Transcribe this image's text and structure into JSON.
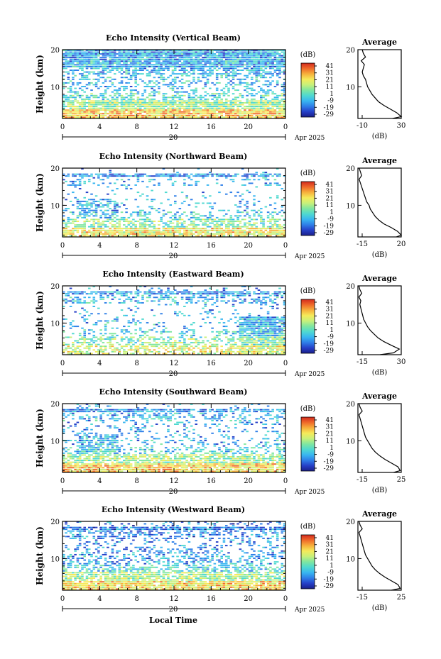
{
  "figure": {
    "common_xlabel": "Local Time",
    "date_label": "Apr 2025",
    "day_label": "20",
    "colorbar_unit": "(dB)",
    "colorbar_ticks": [
      "41",
      "31",
      "21",
      "11",
      "1",
      "-9",
      "-19",
      "-29"
    ],
    "colormap": [
      "#1b1f8a",
      "#2640c8",
      "#2f7fe8",
      "#39b6f0",
      "#4fd9d0",
      "#7fe6a0",
      "#c8f07a",
      "#f5ea5a",
      "#f7b03c",
      "#ef6a2a",
      "#d22a1e"
    ],
    "average_title": "Average",
    "average_xlabel": "(dB)"
  },
  "chart_data": [
    {
      "type": "heatmap",
      "title": "Echo Intensity (Vertical Beam)",
      "ylabel": "Height (km)",
      "xlabel": "",
      "x_ticks": [
        "0",
        "4",
        "8",
        "12",
        "16",
        "20",
        "0"
      ],
      "y_ticks": [
        "20",
        "10"
      ],
      "xlim": [
        0,
        24
      ],
      "ylim": [
        1.5,
        20
      ],
      "color_range_db": [
        -29,
        41
      ],
      "average_profile": {
        "xlim": [
          -10,
          30
        ],
        "x_tick_labels": [
          "-10",
          "30"
        ],
        "height_km": [
          1.5,
          2,
          3,
          4,
          5,
          6,
          7,
          8,
          9,
          10,
          11,
          12,
          13,
          14,
          15,
          16,
          17,
          18,
          19,
          20
        ],
        "db": [
          22,
          30,
          26,
          20,
          14,
          9,
          6,
          3,
          1,
          -1,
          -2,
          -3,
          -5,
          -6,
          -5,
          -4,
          -7,
          -3,
          -5,
          -6
        ]
      }
    },
    {
      "type": "heatmap",
      "title": "Echo Intensity (Northward Beam)",
      "ylabel": "Height (km)",
      "xlabel": "",
      "x_ticks": [
        "0",
        "4",
        "8",
        "12",
        "16",
        "20",
        "0"
      ],
      "y_ticks": [
        "20",
        "10"
      ],
      "xlim": [
        0,
        24
      ],
      "ylim": [
        1.5,
        20
      ],
      "color_range_db": [
        -29,
        41
      ],
      "average_profile": {
        "xlim": [
          -15,
          20
        ],
        "x_tick_labels": [
          "-15",
          "20"
        ],
        "height_km": [
          1.5,
          2,
          3,
          4,
          5,
          6,
          7,
          8,
          9,
          10,
          11,
          12,
          13,
          14,
          15,
          16,
          17,
          18,
          19,
          20
        ],
        "db": [
          16,
          20,
          17,
          12,
          6,
          2,
          -1,
          -3,
          -5,
          -6,
          -8,
          -9,
          -10,
          -11,
          -12,
          -13,
          -14,
          -12,
          -13,
          -14
        ]
      }
    },
    {
      "type": "heatmap",
      "title": "Echo Intensity (Eastward Beam)",
      "ylabel": "Height (km)",
      "xlabel": "",
      "x_ticks": [
        "0",
        "4",
        "8",
        "12",
        "16",
        "20",
        "0"
      ],
      "y_ticks": [
        "20",
        "10"
      ],
      "xlim": [
        0,
        24
      ],
      "ylim": [
        1.5,
        20
      ],
      "color_range_db": [
        -29,
        41
      ],
      "average_profile": {
        "xlim": [
          -15,
          30
        ],
        "x_tick_labels": [
          "-15",
          "30"
        ],
        "height_km": [
          1.5,
          2,
          3,
          4,
          5,
          6,
          7,
          8,
          9,
          10,
          11,
          12,
          13,
          14,
          15,
          16,
          17,
          18,
          19,
          20
        ],
        "db": [
          8,
          22,
          28,
          20,
          12,
          6,
          2,
          -2,
          -5,
          -7,
          -9,
          -10,
          -11,
          -12,
          -13,
          -12,
          -14,
          -11,
          -13,
          -14
        ]
      }
    },
    {
      "type": "heatmap",
      "title": "Echo Intensity (Southward Beam)",
      "ylabel": "Height (km)",
      "xlabel": "",
      "x_ticks": [
        "0",
        "4",
        "8",
        "12",
        "16",
        "20",
        "0"
      ],
      "y_ticks": [
        "20",
        "10"
      ],
      "xlim": [
        0,
        24
      ],
      "ylim": [
        1.5,
        20
      ],
      "color_range_db": [
        -29,
        41
      ],
      "average_profile": {
        "xlim": [
          -15,
          25
        ],
        "x_tick_labels": [
          "-15",
          "25"
        ],
        "height_km": [
          1.5,
          2,
          3,
          4,
          5,
          6,
          7,
          8,
          9,
          10,
          11,
          12,
          13,
          14,
          15,
          16,
          17,
          18,
          19,
          20
        ],
        "db": [
          18,
          24,
          22,
          16,
          10,
          5,
          1,
          -2,
          -4,
          -6,
          -8,
          -9,
          -10,
          -11,
          -12,
          -13,
          -14,
          -11,
          -13,
          -14
        ]
      }
    },
    {
      "type": "heatmap",
      "title": "Echo Intensity (Westward Beam)",
      "ylabel": "Height (km)",
      "xlabel": "Local Time",
      "x_ticks": [
        "0",
        "4",
        "8",
        "12",
        "16",
        "20",
        "0"
      ],
      "y_ticks": [
        "20",
        "10"
      ],
      "xlim": [
        0,
        24
      ],
      "ylim": [
        1.5,
        20
      ],
      "color_range_db": [
        -29,
        41
      ],
      "average_profile": {
        "xlim": [
          -15,
          25
        ],
        "x_tick_labels": [
          "-15",
          "25"
        ],
        "height_km": [
          1.5,
          2,
          3,
          4,
          5,
          6,
          7,
          8,
          9,
          10,
          11,
          12,
          13,
          14,
          15,
          16,
          17,
          18,
          19,
          20
        ],
        "db": [
          16,
          24,
          22,
          16,
          10,
          5,
          1,
          -2,
          -4,
          -6,
          -8,
          -9,
          -10,
          -11,
          -12,
          -13,
          -14,
          -11,
          -13,
          -14
        ]
      }
    }
  ]
}
